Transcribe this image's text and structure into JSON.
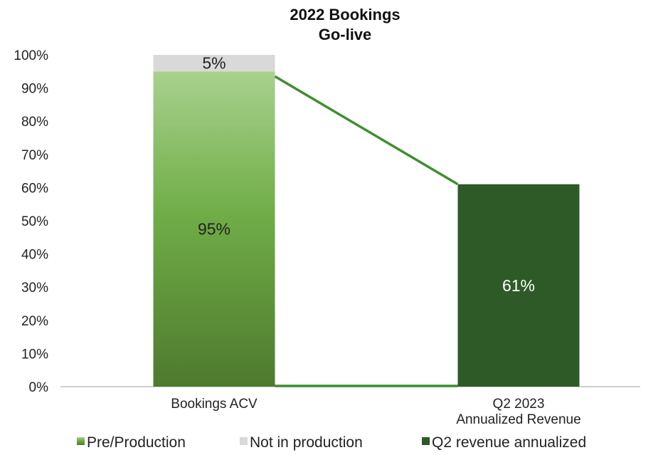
{
  "chart_data": {
    "type": "bar",
    "stacked": true,
    "title": [
      "2022 Bookings",
      "Go-live"
    ],
    "categories": [
      [
        "Bookings ACV"
      ],
      [
        "Q2 2023",
        "Annualized Revenue"
      ]
    ],
    "yticks": [
      "0%",
      "10%",
      "20%",
      "30%",
      "40%",
      "50%",
      "60%",
      "70%",
      "80%",
      "90%",
      "100%"
    ],
    "ylim": [
      0,
      100
    ],
    "series": [
      {
        "name": "Pre/Production",
        "values": [
          95,
          0
        ],
        "color": "#6aaa3a",
        "label": "95%"
      },
      {
        "name": "Not in production",
        "values": [
          5,
          0
        ],
        "color": "#d9d9d9",
        "label": "5%"
      },
      {
        "name": "Q2 revenue annualized",
        "values": [
          0,
          61
        ],
        "color": "#2d5a27",
        "label": "61%"
      }
    ],
    "connector_color": "#3f8f2f",
    "legend_position": "bottom"
  }
}
